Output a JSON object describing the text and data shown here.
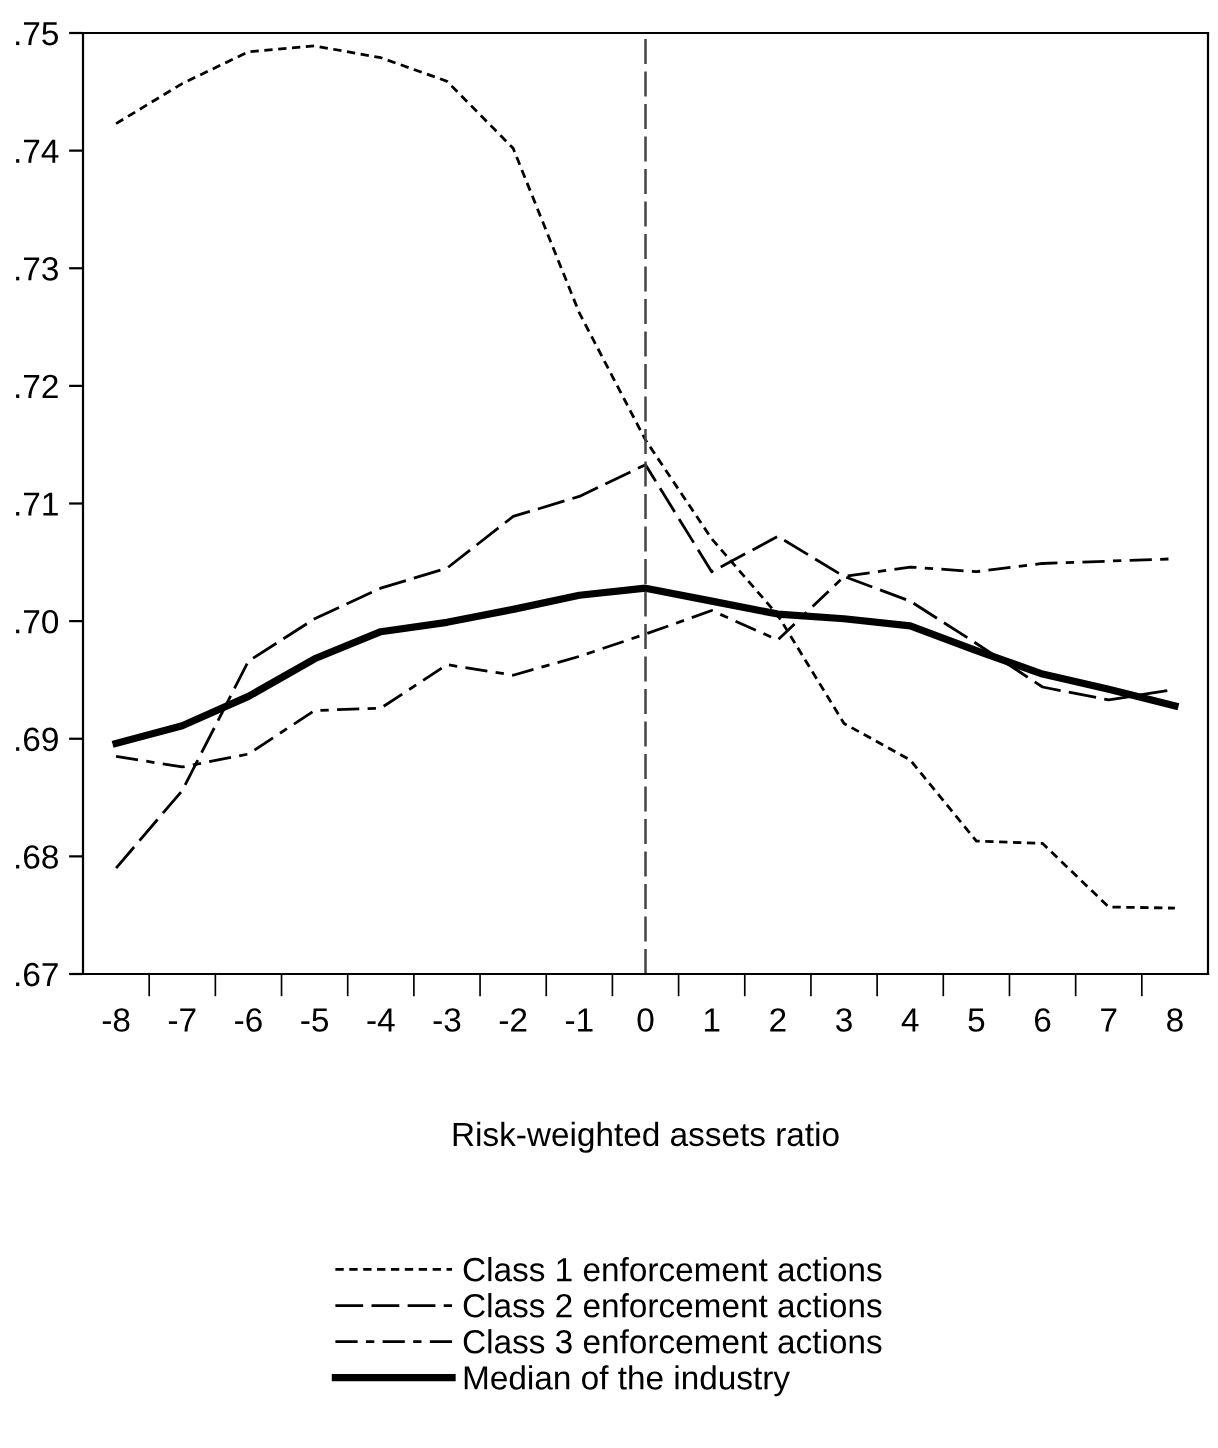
{
  "chart_data": {
    "type": "line",
    "xlabel": "Risk-weighted assets ratio",
    "x": [
      -8,
      -7,
      -6,
      -5,
      -4,
      -3,
      -2,
      -1,
      0,
      1,
      2,
      3,
      4,
      5,
      6,
      7,
      8
    ],
    "series": [
      {
        "name": "Class 1 enforcement actions",
        "color": "#000000",
        "line_style": "dotted",
        "values": [
          0.7423,
          0.7457,
          0.7484,
          0.7489,
          0.7479,
          0.7459,
          0.7402,
          0.7262,
          0.7154,
          0.707,
          0.7005,
          0.6913,
          0.6882,
          0.6813,
          0.6811,
          0.6757,
          0.6756
        ]
      },
      {
        "name": "Class 2 enforcement actions",
        "color": "#000000",
        "line_style": "dashed",
        "values": [
          0.679,
          0.6856,
          0.6966,
          0.7002,
          0.7028,
          0.7045,
          0.7089,
          0.7106,
          0.7133,
          0.7042,
          0.7072,
          0.7038,
          0.7017,
          0.6981,
          0.6944,
          0.6933,
          0.6942
        ]
      },
      {
        "name": "Class 3 enforcement actions",
        "color": "#000000",
        "line_style": "dashdot",
        "values": [
          0.6885,
          0.6876,
          0.6887,
          0.6924,
          0.6926,
          0.6963,
          0.6954,
          0.697,
          0.6989,
          0.7009,
          0.6984,
          0.7038,
          0.7046,
          0.7042,
          0.7049,
          0.7051,
          0.7053
        ]
      },
      {
        "name": "Median of the industry",
        "color": "#000000",
        "line_style": "solid",
        "values": [
          0.6896,
          0.6911,
          0.6936,
          0.6968,
          0.6991,
          0.6999,
          0.701,
          0.7022,
          0.7028,
          0.7017,
          0.7006,
          0.7002,
          0.6996,
          0.6975,
          0.6955,
          0.6942,
          0.6928
        ]
      }
    ],
    "xlim": [
      -8.5,
      8.5
    ],
    "xticks": [
      -8,
      -7,
      -6,
      -5,
      -4,
      -3,
      -2,
      -1,
      0,
      1,
      2,
      3,
      4,
      5,
      6,
      7,
      8
    ],
    "ylim": [
      0.67,
      0.75
    ],
    "yticks": [
      {
        "value": 0.67,
        "label": ".67"
      },
      {
        "value": 0.68,
        "label": ".68"
      },
      {
        "value": 0.69,
        "label": ".69"
      },
      {
        "value": 0.7,
        "label": ".70"
      },
      {
        "value": 0.71,
        "label": ".71"
      },
      {
        "value": 0.72,
        "label": ".72"
      },
      {
        "value": 0.73,
        "label": ".73"
      },
      {
        "value": 0.74,
        "label": ".74"
      },
      {
        "value": 0.75,
        "label": ".75"
      }
    ],
    "ref_lines": [
      {
        "axis": "x",
        "value": 0,
        "color": "#444444",
        "line_style": "dashed"
      }
    ],
    "grid": false,
    "legend": "bottom",
    "marker": "none"
  }
}
